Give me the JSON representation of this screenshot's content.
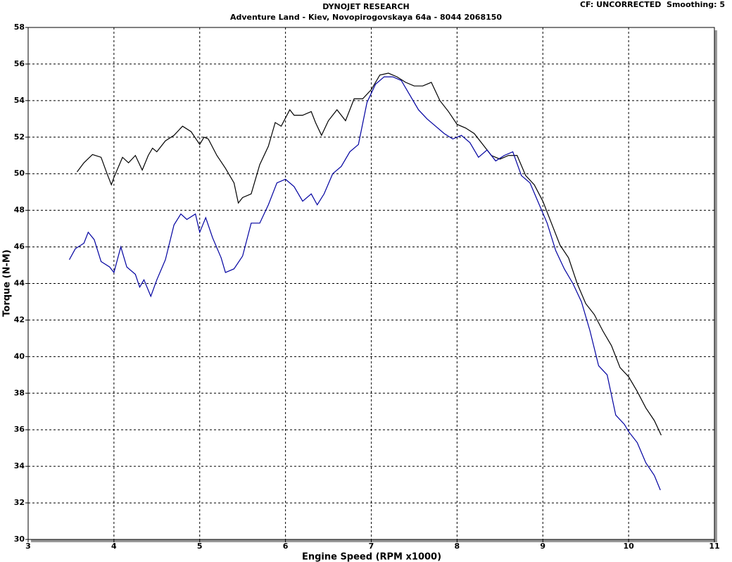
{
  "chart_data": {
    "type": "line",
    "title": "DYNOJET RESEARCH",
    "subtitle": "Adventure Land - Kiev, Novopirogovskaya 64a - 8044 2068150",
    "annotation": "CF: UNCORRECTED  Smoothing: 5",
    "xlabel": "Engine Speed (RPM x1000)",
    "ylabel": "Torque (N-M)",
    "xlim": [
      3,
      11
    ],
    "ylim": [
      30,
      58
    ],
    "xticks": [
      3,
      4,
      5,
      6,
      7,
      8,
      9,
      10,
      11
    ],
    "yticks": [
      30,
      32,
      34,
      36,
      38,
      40,
      42,
      44,
      46,
      48,
      50,
      52,
      54,
      56,
      58
    ],
    "grid": true,
    "series": [
      {
        "color": "#000000",
        "x": [
          3.57,
          3.65,
          3.75,
          3.85,
          3.92,
          3.97,
          4.0,
          4.1,
          4.17,
          4.25,
          4.33,
          4.4,
          4.45,
          4.5,
          4.6,
          4.7,
          4.8,
          4.9,
          5.0,
          5.05,
          5.1,
          5.2,
          5.3,
          5.4,
          5.45,
          5.5,
          5.6,
          5.7,
          5.8,
          5.88,
          5.95,
          6.05,
          6.1,
          6.2,
          6.3,
          6.35,
          6.42,
          6.5,
          6.6,
          6.7,
          6.8,
          6.9,
          7.0,
          7.1,
          7.2,
          7.3,
          7.4,
          7.5,
          7.6,
          7.7,
          7.8,
          7.9,
          8.0,
          8.1,
          8.2,
          8.3,
          8.4,
          8.5,
          8.6,
          8.7,
          8.8,
          8.9,
          9.0,
          9.1,
          9.2,
          9.3,
          9.4,
          9.5,
          9.6,
          9.7,
          9.8,
          9.9,
          10.0,
          10.1,
          10.2,
          10.3,
          10.38
        ],
        "values": [
          50.1,
          50.6,
          51.05,
          50.9,
          50.0,
          49.4,
          49.8,
          50.9,
          50.6,
          51.0,
          50.2,
          51.0,
          51.4,
          51.2,
          51.8,
          52.1,
          52.6,
          52.3,
          51.6,
          52.0,
          51.9,
          51.0,
          50.3,
          49.5,
          48.4,
          48.7,
          48.9,
          50.5,
          51.5,
          52.8,
          52.6,
          53.5,
          53.2,
          53.2,
          53.4,
          52.8,
          52.1,
          52.9,
          53.5,
          52.9,
          54.1,
          54.1,
          54.6,
          55.4,
          55.5,
          55.3,
          55.0,
          54.8,
          54.8,
          55.0,
          54.0,
          53.4,
          52.7,
          52.5,
          52.2,
          51.6,
          51.0,
          50.8,
          51.0,
          51.0,
          49.9,
          49.4,
          48.5,
          47.3,
          46.1,
          45.4,
          44.0,
          42.9,
          42.3,
          41.4,
          40.6,
          39.4,
          38.9,
          38.1,
          37.2,
          36.5,
          35.7
        ]
      },
      {
        "color": "#0000a0",
        "x": [
          3.48,
          3.55,
          3.65,
          3.7,
          3.77,
          3.85,
          3.95,
          4.0,
          4.08,
          4.15,
          4.25,
          4.3,
          4.35,
          4.43,
          4.5,
          4.6,
          4.7,
          4.78,
          4.85,
          4.95,
          5.0,
          5.07,
          5.15,
          5.25,
          5.3,
          5.4,
          5.5,
          5.6,
          5.7,
          5.8,
          5.9,
          6.0,
          6.1,
          6.2,
          6.3,
          6.37,
          6.45,
          6.55,
          6.65,
          6.75,
          6.85,
          6.95,
          7.05,
          7.15,
          7.25,
          7.35,
          7.45,
          7.55,
          7.65,
          7.75,
          7.85,
          7.95,
          8.05,
          8.15,
          8.25,
          8.35,
          8.45,
          8.55,
          8.65,
          8.75,
          8.85,
          8.95,
          9.05,
          9.15,
          9.25,
          9.35,
          9.45,
          9.55,
          9.65,
          9.75,
          9.85,
          9.95,
          10.0,
          10.1,
          10.2,
          10.3,
          10.37
        ],
        "values": [
          45.3,
          45.9,
          46.2,
          46.8,
          46.4,
          45.2,
          44.9,
          44.6,
          46.0,
          44.9,
          44.5,
          43.8,
          44.2,
          43.3,
          44.2,
          45.3,
          47.2,
          47.8,
          47.5,
          47.8,
          46.8,
          47.6,
          46.5,
          45.4,
          44.6,
          44.8,
          45.5,
          47.3,
          47.3,
          48.3,
          49.5,
          49.7,
          49.3,
          48.5,
          48.9,
          48.3,
          48.9,
          50.0,
          50.4,
          51.2,
          51.6,
          53.9,
          54.9,
          55.3,
          55.3,
          55.1,
          54.3,
          53.5,
          53.0,
          52.6,
          52.2,
          51.9,
          52.1,
          51.7,
          50.9,
          51.3,
          50.7,
          51.0,
          51.2,
          49.9,
          49.5,
          48.4,
          47.3,
          45.8,
          44.8,
          44.0,
          43.0,
          41.4,
          39.5,
          39.0,
          36.8,
          36.3,
          35.9,
          35.3,
          34.2,
          33.5,
          32.7
        ]
      }
    ]
  }
}
